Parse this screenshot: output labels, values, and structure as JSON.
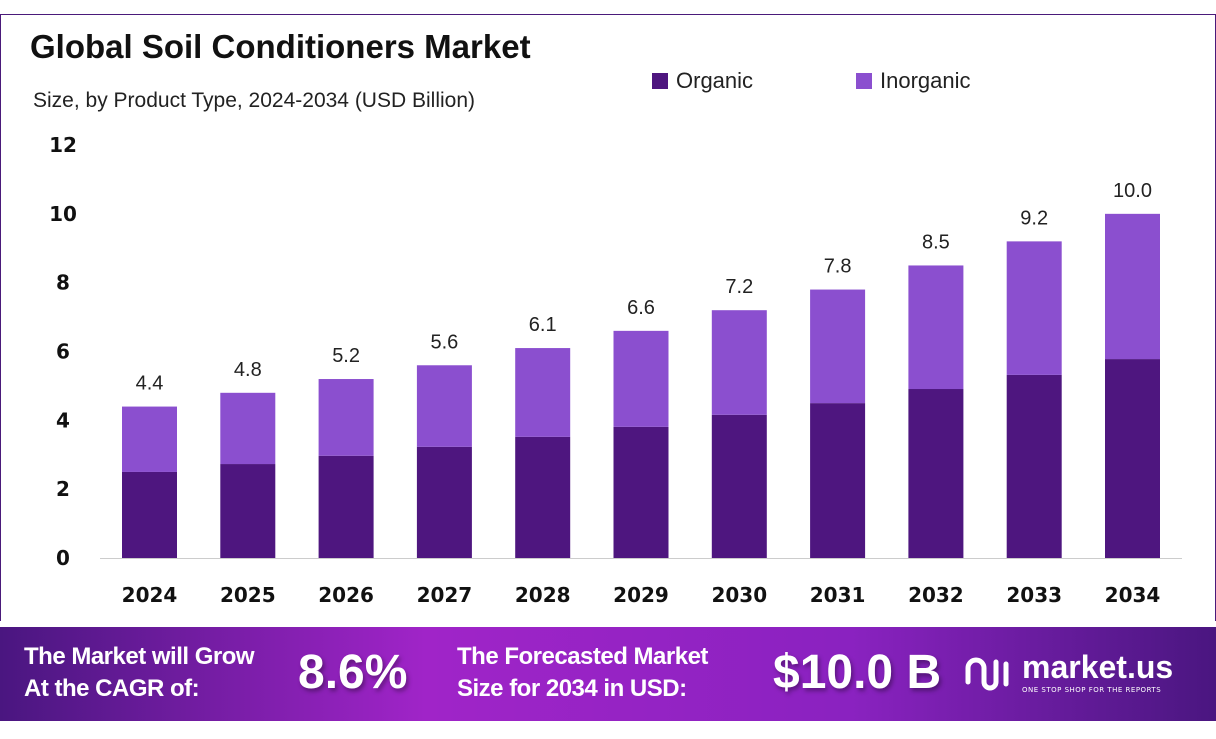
{
  "chart_data": {
    "type": "bar",
    "stacked": true,
    "title": "Global Soil Conditioners Market",
    "subtitle": "Size, by Product Type, 2024-2034 (USD Billion)",
    "categories": [
      "2024",
      "2025",
      "2026",
      "2027",
      "2028",
      "2029",
      "2030",
      "2031",
      "2032",
      "2033",
      "2034"
    ],
    "series": [
      {
        "name": "Organic",
        "color": "#4e167f",
        "values": [
          2.5,
          2.73,
          2.97,
          3.23,
          3.52,
          3.81,
          4.16,
          4.5,
          4.91,
          5.32,
          5.78
        ]
      },
      {
        "name": "Inorganic",
        "color": "#8b4fcf",
        "values": [
          1.9,
          2.07,
          2.23,
          2.37,
          2.58,
          2.79,
          3.04,
          3.3,
          3.59,
          3.88,
          4.22
        ]
      }
    ],
    "totals_labels": [
      "4.4",
      "4.8",
      "5.2",
      "5.6",
      "6.1",
      "6.6",
      "7.2",
      "7.8",
      "8.5",
      "9.2",
      "10.0"
    ],
    "totals": [
      4.4,
      4.8,
      5.2,
      5.6,
      6.1,
      6.6,
      7.2,
      7.8,
      8.5,
      9.2,
      10.0
    ],
    "ylim": [
      0,
      12
    ],
    "yticks": [
      "0",
      "2",
      "4",
      "6",
      "8",
      "10",
      "12"
    ],
    "grid": false,
    "legend": "top-right"
  },
  "footer": {
    "cagr_label_1": "The Market will Grow",
    "cagr_label_2": "At the CAGR of:",
    "cagr_value": "8.6%",
    "forecast_label_1": "The Forecasted Market",
    "forecast_label_2": "Size for 2034 in USD:",
    "forecast_value": "$10.0 B",
    "logo_name": "market.us",
    "logo_tagline": "ONE STOP SHOP FOR THE REPORTS"
  }
}
